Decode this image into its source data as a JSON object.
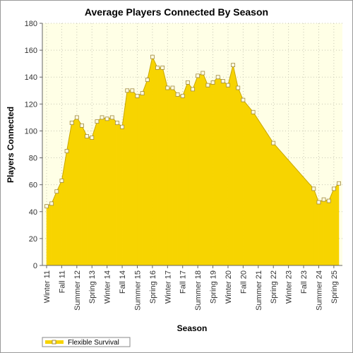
{
  "chart_data": {
    "type": "area",
    "title": "Average Players Connected By Season",
    "x_label": "Season",
    "y_label": "Players Connected",
    "categories": [
      "Winter 11",
      null,
      null,
      "Fall 11",
      null,
      null,
      "Summer 12",
      null,
      null,
      "Spring 13",
      null,
      null,
      "Winter 14",
      null,
      null,
      "Fall 14",
      null,
      null,
      "Summer 15",
      null,
      null,
      "Spring 16",
      null,
      null,
      "Winter 17",
      null,
      null,
      "Fall 17",
      null,
      null,
      "Summer 18",
      null,
      null,
      "Spring 19",
      null,
      null,
      "Winter 20",
      null,
      null,
      "Fall 20",
      null,
      null,
      "Summer 21",
      null,
      null,
      "Spring 22",
      null,
      null,
      "Winter 23",
      null,
      null,
      "Fall 23",
      null,
      null,
      "Summer 24",
      null,
      null,
      "Spring 25",
      null
    ],
    "series": [
      {
        "name": "Flexible Survival",
        "color": "#f7d400",
        "values": [
          44,
          46,
          55,
          63,
          85,
          106,
          110,
          104,
          96,
          95,
          107,
          110,
          109,
          110,
          106,
          103,
          130,
          130,
          126,
          128,
          138,
          155,
          147,
          147,
          132,
          132,
          127,
          126,
          136,
          131,
          141,
          143,
          134,
          136,
          140,
          137,
          134,
          149,
          132,
          123,
          null,
          114,
          null,
          null,
          null,
          91,
          null,
          null,
          null,
          null,
          null,
          null,
          null,
          57,
          47,
          49,
          48,
          57,
          61
        ]
      }
    ],
    "ylim": [
      0,
      180
    ],
    "yticks": [
      0,
      20,
      40,
      60,
      80,
      100,
      120,
      140,
      160,
      180
    ],
    "grid": true,
    "legend": "bottom-left"
  }
}
